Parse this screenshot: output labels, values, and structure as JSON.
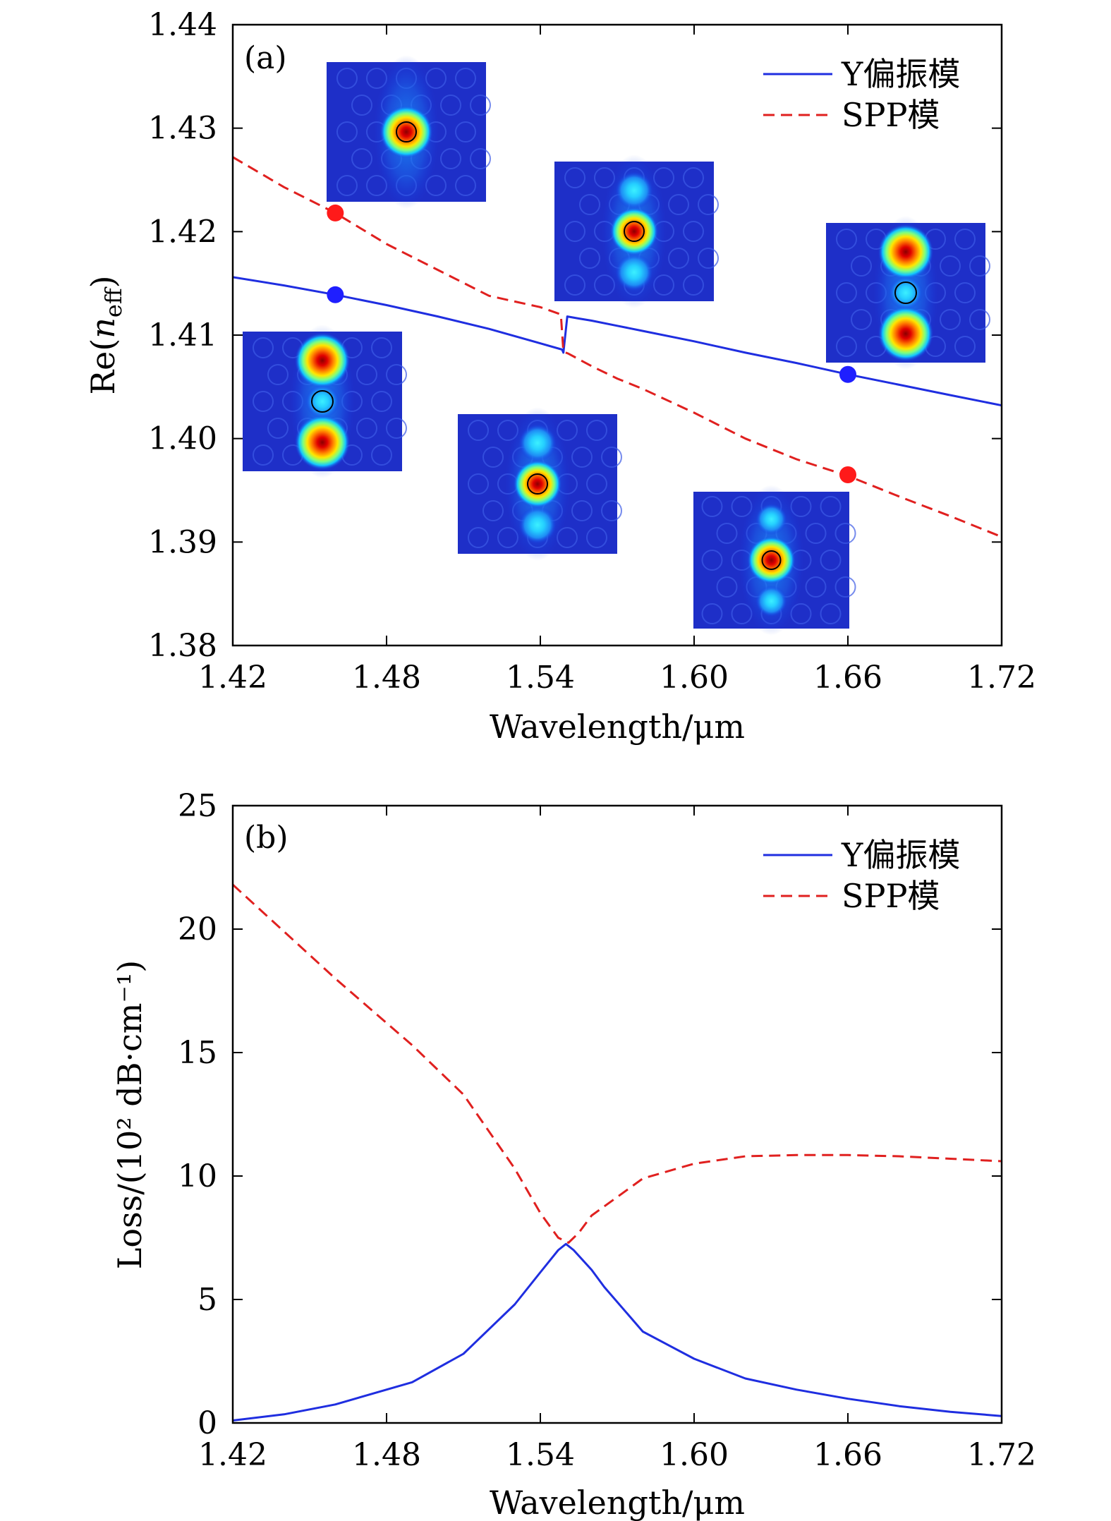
{
  "chart_data": [
    {
      "type": "line",
      "panel_label": "(a)",
      "xlabel": "Wavelength/μm",
      "ylabel": "Re(n_eff)",
      "ylabel_parts": {
        "prefix": "Re(",
        "symbol": "n",
        "subscript": "eff",
        "suffix": ")"
      },
      "xlim": [
        1.42,
        1.72
      ],
      "ylim": [
        1.38,
        1.44
      ],
      "xticks": [
        "1.42",
        "1.48",
        "1.54",
        "1.60",
        "1.66",
        "1.72"
      ],
      "yticks": [
        "1.38",
        "1.39",
        "1.40",
        "1.41",
        "1.42",
        "1.43",
        "1.44"
      ],
      "legend_position": "top-right",
      "series": [
        {
          "name": "Y偏振模",
          "color": "#1f2ee0",
          "style": "solid",
          "x": [
            1.42,
            1.44,
            1.46,
            1.48,
            1.5,
            1.52,
            1.54,
            1.5485,
            1.549,
            1.5505,
            1.555,
            1.56,
            1.57,
            1.58,
            1.6,
            1.62,
            1.64,
            1.66,
            1.68,
            1.7,
            1.72
          ],
          "y": [
            1.4156,
            1.4148,
            1.4139,
            1.4129,
            1.4118,
            1.4106,
            1.4092,
            1.4086,
            1.4083,
            1.4118,
            1.4116,
            1.4114,
            1.4109,
            1.4104,
            1.4094,
            1.4083,
            1.4073,
            1.4062,
            1.4052,
            1.4042,
            1.4032
          ]
        },
        {
          "name": "SPP模",
          "color": "#e0201f",
          "style": "dashed",
          "x": [
            1.42,
            1.44,
            1.46,
            1.48,
            1.5,
            1.52,
            1.54,
            1.548,
            1.549,
            1.551,
            1.56,
            1.57,
            1.58,
            1.6,
            1.62,
            1.64,
            1.66,
            1.68,
            1.7,
            1.72
          ],
          "y": [
            1.4272,
            1.4243,
            1.4218,
            1.4188,
            1.4163,
            1.4138,
            1.4127,
            1.412,
            1.4084,
            1.4082,
            1.407,
            1.4058,
            1.4048,
            1.4025,
            1.4,
            1.398,
            1.3964,
            1.3944,
            1.3925,
            1.3905
          ]
        }
      ],
      "markers": [
        {
          "series": "SPP模",
          "x": 1.46,
          "y": 1.4218,
          "color": "#ff1a1a"
        },
        {
          "series": "Y偏振模",
          "x": 1.46,
          "y": 1.4139,
          "color": "#1f1fff"
        },
        {
          "series": "Y偏振模",
          "x": 1.66,
          "y": 1.4062,
          "color": "#1f1fff"
        },
        {
          "series": "SPP模",
          "x": 1.66,
          "y": 1.3965,
          "color": "#ff1a1a"
        }
      ],
      "insets": [
        {
          "id": "inset-1",
          "pattern": "single-center-lobe"
        },
        {
          "id": "inset-2",
          "pattern": "three-lobes-center-strong"
        },
        {
          "id": "inset-3",
          "pattern": "three-lobes-outer-strong"
        },
        {
          "id": "inset-4",
          "pattern": "three-lobes-outer-strong"
        },
        {
          "id": "inset-5",
          "pattern": "three-lobes-center-strong"
        },
        {
          "id": "inset-6",
          "pattern": "single-center-lobe-weak-sides"
        }
      ]
    },
    {
      "type": "line",
      "panel_label": "(b)",
      "xlabel": "Wavelength/μm",
      "ylabel": "Loss/(10² dB·cm⁻¹)",
      "xlim": [
        1.42,
        1.72
      ],
      "ylim": [
        0,
        25
      ],
      "xticks": [
        "1.42",
        "1.48",
        "1.54",
        "1.60",
        "1.66",
        "1.72"
      ],
      "yticks": [
        "0",
        "5",
        "10",
        "15",
        "20",
        "25"
      ],
      "legend_position": "top-right",
      "series": [
        {
          "name": "Y偏振模",
          "color": "#1f2ee0",
          "style": "solid",
          "x": [
            1.42,
            1.44,
            1.46,
            1.49,
            1.51,
            1.53,
            1.54,
            1.547,
            1.55,
            1.553,
            1.56,
            1.565,
            1.58,
            1.6,
            1.62,
            1.64,
            1.66,
            1.68,
            1.7,
            1.72
          ],
          "y": [
            0.1,
            0.35,
            0.75,
            1.65,
            2.8,
            4.8,
            6.1,
            7.0,
            7.25,
            7.0,
            6.2,
            5.5,
            3.7,
            2.6,
            1.8,
            1.35,
            0.98,
            0.68,
            0.45,
            0.28
          ]
        },
        {
          "name": "SPP模",
          "color": "#e0201f",
          "style": "dashed",
          "x": [
            1.42,
            1.44,
            1.46,
            1.49,
            1.51,
            1.53,
            1.54,
            1.547,
            1.551,
            1.555,
            1.56,
            1.58,
            1.6,
            1.62,
            1.64,
            1.66,
            1.68,
            1.7,
            1.72
          ],
          "y": [
            21.8,
            19.9,
            18.0,
            15.3,
            13.3,
            10.3,
            8.5,
            7.5,
            7.3,
            7.7,
            8.4,
            9.9,
            10.5,
            10.8,
            10.85,
            10.85,
            10.8,
            10.7,
            10.6
          ]
        }
      ]
    }
  ]
}
